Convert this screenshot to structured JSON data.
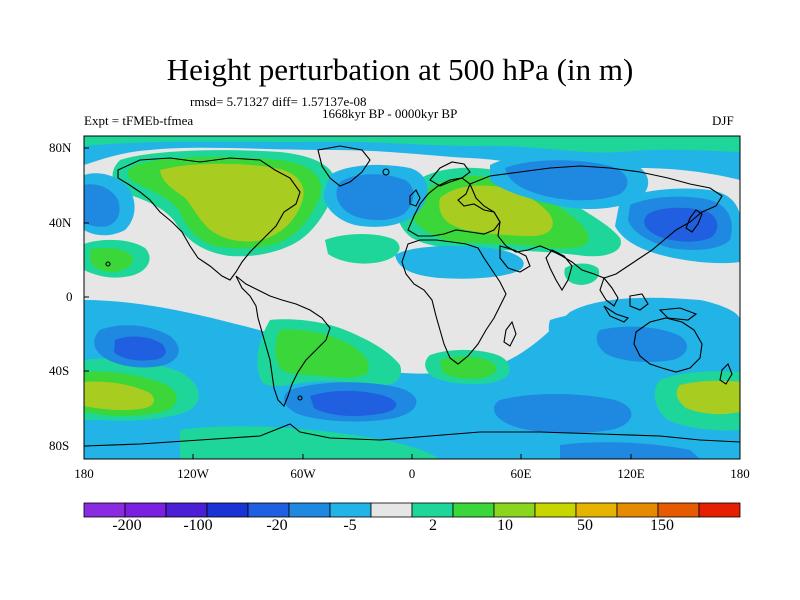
{
  "title": "Height perturbation at 500 hPa (in m)",
  "stats": "rmsd= 5.71327 diff= 1.57137e-08",
  "period": "1668kyr BP - 0000kyr BP",
  "experiment": "Expt = tFMEb-tfmea",
  "season": "DJF",
  "lat_labels": [
    "80N",
    "40N",
    "0",
    "40S",
    "80S"
  ],
  "lon_labels": [
    "180",
    "120W",
    "60W",
    "0",
    "60E",
    "120E",
    "180"
  ],
  "colorbar": {
    "colors": [
      "#8a2be2",
      "#7b1fe0",
      "#4a1fd6",
      "#1a33d4",
      "#1f5fe0",
      "#1f88e0",
      "#22b4e6",
      "#e6e6e6",
      "#1fd69a",
      "#3ad63a",
      "#8ad61f",
      "#c8d600",
      "#e6b400",
      "#e68a00",
      "#e65a00",
      "#e61f00"
    ],
    "labels": [
      "-200",
      "-100",
      "-20",
      "-5",
      "2",
      "10",
      "50",
      "150"
    ]
  },
  "palette": {
    "ocean_neutral": "#e6e6e6",
    "blue_dark": "#1f5fe0",
    "blue": "#1f88e0",
    "cyan": "#22b4e6",
    "teal": "#1fd69a",
    "green": "#3ad63a",
    "yellow_green": "#8ad61f",
    "olive": "#a8cc20"
  }
}
